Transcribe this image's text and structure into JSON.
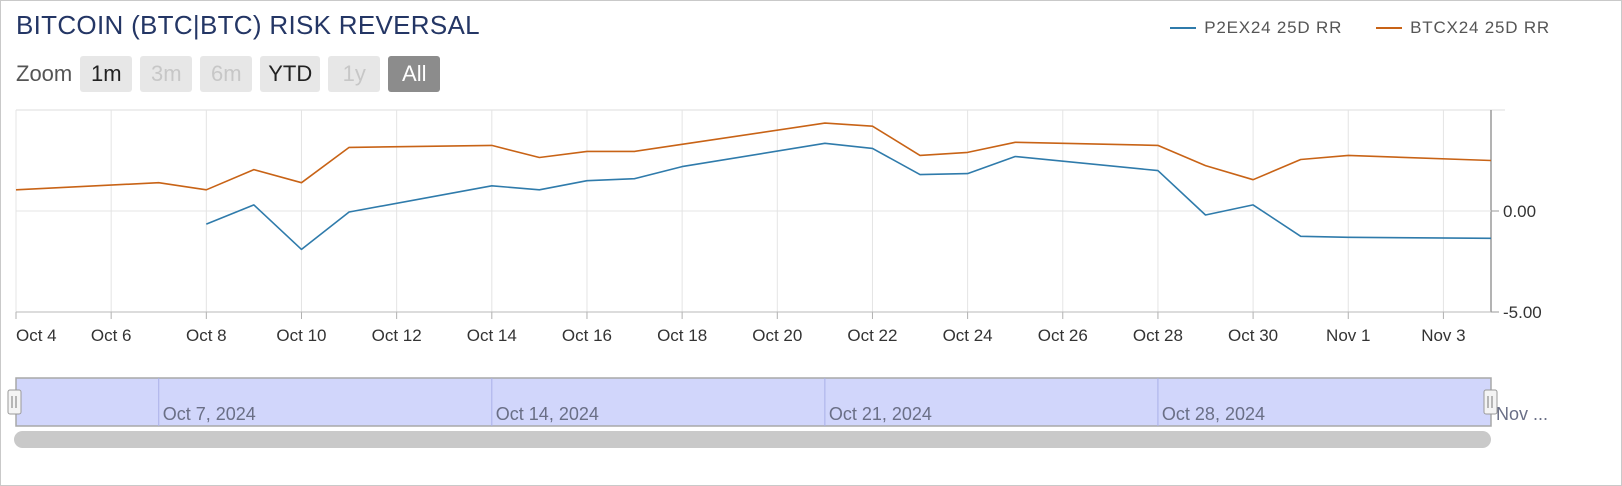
{
  "title": "BITCOIN (BTC|BTC) RISK REVERSAL",
  "zoom": {
    "label": "Zoom",
    "buttons": [
      {
        "label": "1m",
        "state": "normal"
      },
      {
        "label": "3m",
        "state": "disabled"
      },
      {
        "label": "6m",
        "state": "disabled"
      },
      {
        "label": "YTD",
        "state": "normal"
      },
      {
        "label": "1y",
        "state": "disabled"
      },
      {
        "label": "All",
        "state": "active"
      }
    ]
  },
  "legend": [
    {
      "name": "P2EX24 25D RR",
      "color": "#2f7bab"
    },
    {
      "name": "BTCX24 25D RR",
      "color": "#c86316"
    }
  ],
  "navigator": {
    "labels": [
      "Oct 7, 2024",
      "Oct 14, 2024",
      "Oct 21, 2024",
      "Oct 28, 2024",
      "Nov ..."
    ],
    "fill_color": "#d1d6fb"
  },
  "chart_data": {
    "type": "line",
    "title": "BITCOIN (BTC|BTC) RISK REVERSAL",
    "x_range": [
      "2024-10-04",
      "2024-11-04"
    ],
    "ylim": [
      -5,
      5
    ],
    "y_ticks": [
      0,
      -5
    ],
    "y_tick_labels": [
      "0.00",
      "-5.00"
    ],
    "x_ticks": [
      "2024-10-04",
      "2024-10-06",
      "2024-10-08",
      "2024-10-10",
      "2024-10-12",
      "2024-10-14",
      "2024-10-16",
      "2024-10-18",
      "2024-10-20",
      "2024-10-22",
      "2024-10-24",
      "2024-10-26",
      "2024-10-28",
      "2024-10-30",
      "2024-11-01",
      "2024-11-03"
    ],
    "x_tick_labels": [
      "Oct 4",
      "Oct 6",
      "Oct 8",
      "Oct 10",
      "Oct 12",
      "Oct 14",
      "Oct 16",
      "Oct 18",
      "Oct 20",
      "Oct 22",
      "Oct 24",
      "Oct 26",
      "Oct 28",
      "Oct 30",
      "Nov 1",
      "Nov 3"
    ],
    "grid": true,
    "legend_position": "top-right",
    "series": [
      {
        "name": "P2EX24 25D RR",
        "color": "#2f7bab",
        "points": [
          [
            "2024-10-08",
            -0.65
          ],
          [
            "2024-10-09",
            0.3
          ],
          [
            "2024-10-10",
            -1.9
          ],
          [
            "2024-10-11",
            -0.05
          ],
          [
            "2024-10-14",
            1.25
          ],
          [
            "2024-10-15",
            1.05
          ],
          [
            "2024-10-16",
            1.5
          ],
          [
            "2024-10-17",
            1.6
          ],
          [
            "2024-10-18",
            2.2
          ],
          [
            "2024-10-21",
            3.35
          ],
          [
            "2024-10-22",
            3.1
          ],
          [
            "2024-10-23",
            1.8
          ],
          [
            "2024-10-24",
            1.85
          ],
          [
            "2024-10-25",
            2.7
          ],
          [
            "2024-10-28",
            2.0
          ],
          [
            "2024-10-29",
            -0.2
          ],
          [
            "2024-10-30",
            0.3
          ],
          [
            "2024-10-31",
            -1.25
          ],
          [
            "2024-11-01",
            -1.3
          ],
          [
            "2024-11-04",
            -1.35
          ]
        ]
      },
      {
        "name": "BTCX24 25D RR",
        "color": "#c86316",
        "points": [
          [
            "2024-10-04",
            1.05
          ],
          [
            "2024-10-07",
            1.4
          ],
          [
            "2024-10-08",
            1.05
          ],
          [
            "2024-10-09",
            2.05
          ],
          [
            "2024-10-10",
            1.4
          ],
          [
            "2024-10-11",
            3.15
          ],
          [
            "2024-10-14",
            3.25
          ],
          [
            "2024-10-15",
            2.65
          ],
          [
            "2024-10-16",
            2.95
          ],
          [
            "2024-10-17",
            2.95
          ],
          [
            "2024-10-18",
            3.3
          ],
          [
            "2024-10-21",
            4.35
          ],
          [
            "2024-10-22",
            4.2
          ],
          [
            "2024-10-23",
            2.75
          ],
          [
            "2024-10-24",
            2.9
          ],
          [
            "2024-10-25",
            3.4
          ],
          [
            "2024-10-28",
            3.25
          ],
          [
            "2024-10-29",
            2.25
          ],
          [
            "2024-10-30",
            1.55
          ],
          [
            "2024-10-31",
            2.55
          ],
          [
            "2024-11-01",
            2.75
          ],
          [
            "2024-11-04",
            2.5
          ]
        ]
      }
    ]
  }
}
